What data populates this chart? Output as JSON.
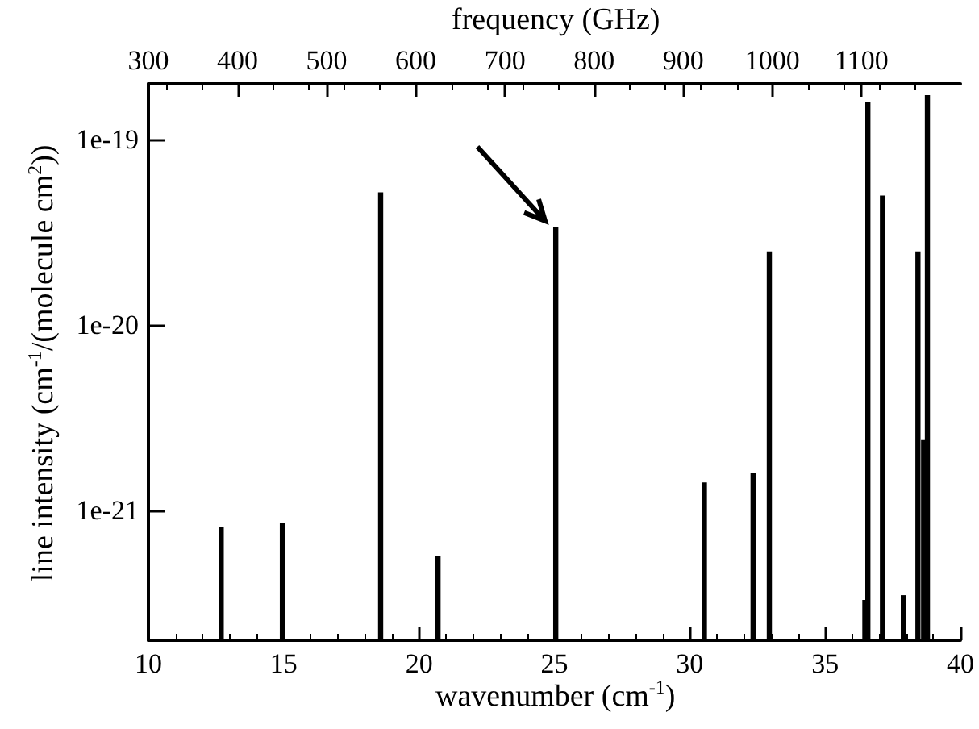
{
  "chart_data": {
    "type": "bar",
    "xlabel": "wavenumber (cm$^{-1}$)",
    "ylabel": "line intensity (cm$^{-1}$/(molecule cm$^{2}$))",
    "x2label": "frequency (GHz)",
    "x": [
      12.69,
      14.95,
      18.58,
      20.7,
      25.05,
      30.54,
      32.34,
      32.94,
      36.47,
      36.58,
      37.12,
      37.89,
      38.43,
      38.64,
      38.78
    ],
    "values": [
      8.2e-22,
      8.6e-22,
      5.2e-20,
      5.7e-22,
      3.4e-20,
      1.42e-21,
      1.6e-21,
      2.5e-20,
      3.3e-22,
      1.6e-19,
      5e-20,
      3.5e-22,
      2.5e-20,
      2.4e-21,
      1.74e-19
    ],
    "color": "#000000",
    "xlim": [
      10,
      40
    ],
    "xticks": [
      10,
      15,
      20,
      25,
      30,
      35,
      40
    ],
    "x2lim": [
      300,
      1211
    ],
    "x2ticks": [
      300,
      400,
      500,
      600,
      700,
      800,
      900,
      1000,
      1100
    ],
    "ylim": [
      2e-22,
      2e-19
    ],
    "yticks": [
      {
        "value": 1e-21,
        "label": "1e-21"
      },
      {
        "value": 1e-20,
        "label": "1e-20"
      },
      {
        "value": 1e-19,
        "label": "1e-19"
      }
    ],
    "log": "y",
    "grid": false
  }
}
